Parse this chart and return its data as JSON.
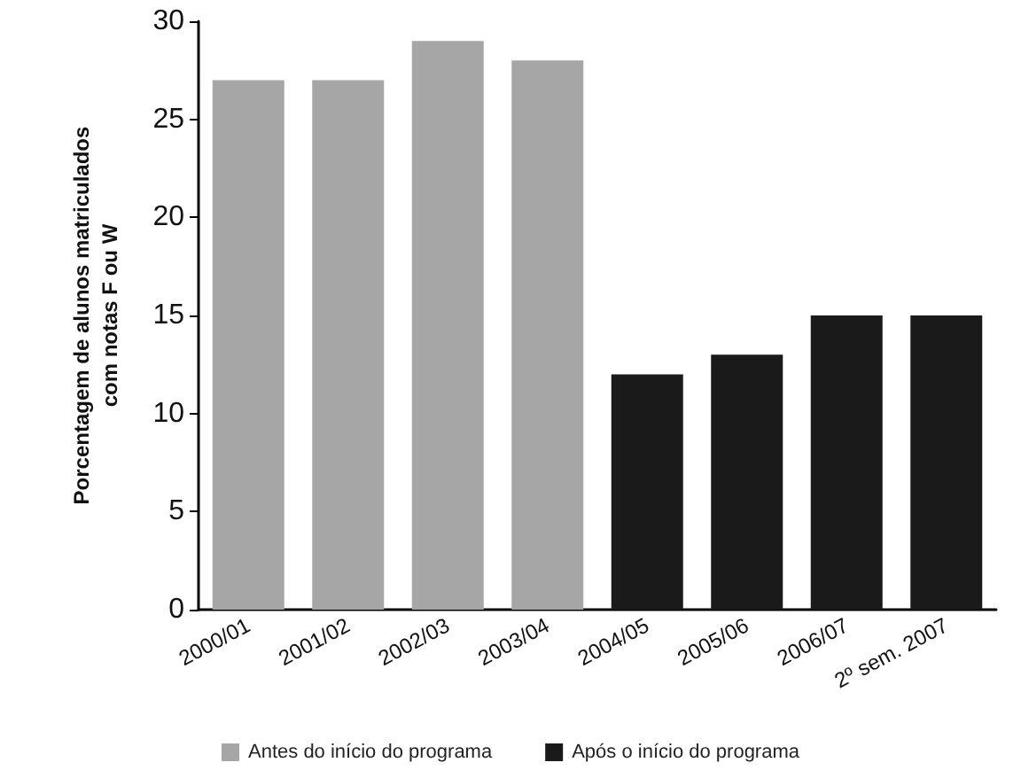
{
  "chart_data": {
    "type": "bar",
    "ylabel": "Porcentagem de alunos matriculados\ncom notas F ou W",
    "categories": [
      "2000/01",
      "2001/02",
      "2002/03",
      "2003/04",
      "2004/05",
      "2005/06",
      "2006/07",
      "2º sem. 2007"
    ],
    "series": [
      {
        "name": "Antes do início do programa",
        "color": "#a6a6a6",
        "values": [
          27,
          27,
          29,
          28,
          null,
          null,
          null,
          null
        ]
      },
      {
        "name": "Após o início do programa",
        "color": "#1a1a1a",
        "values": [
          null,
          null,
          null,
          null,
          12,
          13,
          15,
          15
        ]
      }
    ],
    "ylim": [
      0,
      30
    ],
    "yticks": [
      0,
      5,
      10,
      15,
      20,
      25,
      30
    ],
    "grid": false,
    "legend": "bottom"
  }
}
